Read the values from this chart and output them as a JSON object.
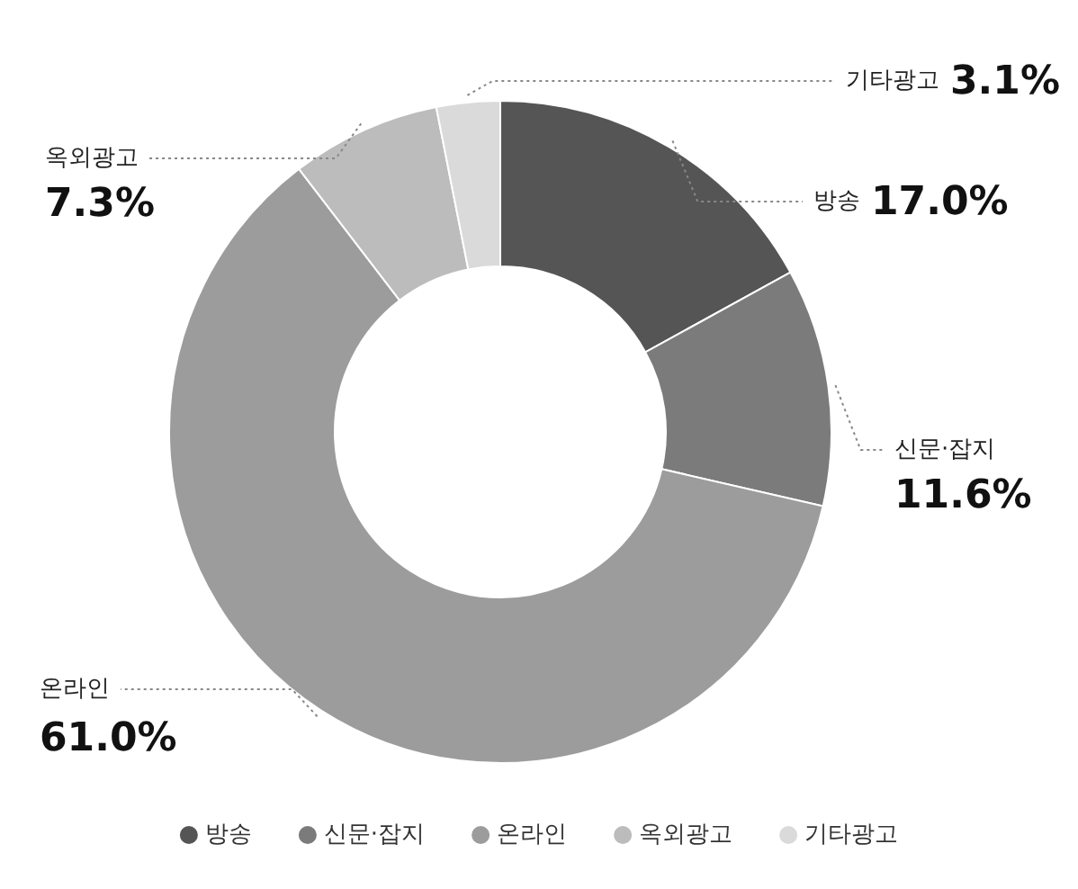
{
  "chart_data": {
    "type": "donut",
    "categories": [
      "방송",
      "신문·잡지",
      "온라인",
      "옥외광고",
      "기타광고"
    ],
    "values": [
      17.0,
      11.6,
      61.0,
      7.3,
      3.1
    ],
    "colors": [
      "#555555",
      "#7b7b7b",
      "#9c9c9c",
      "#bcbcbc",
      "#dadada"
    ],
    "value_labels": [
      "17.0%",
      "11.6%",
      "61.0%",
      "7.3%",
      "3.1%"
    ],
    "legend": "bottom"
  }
}
